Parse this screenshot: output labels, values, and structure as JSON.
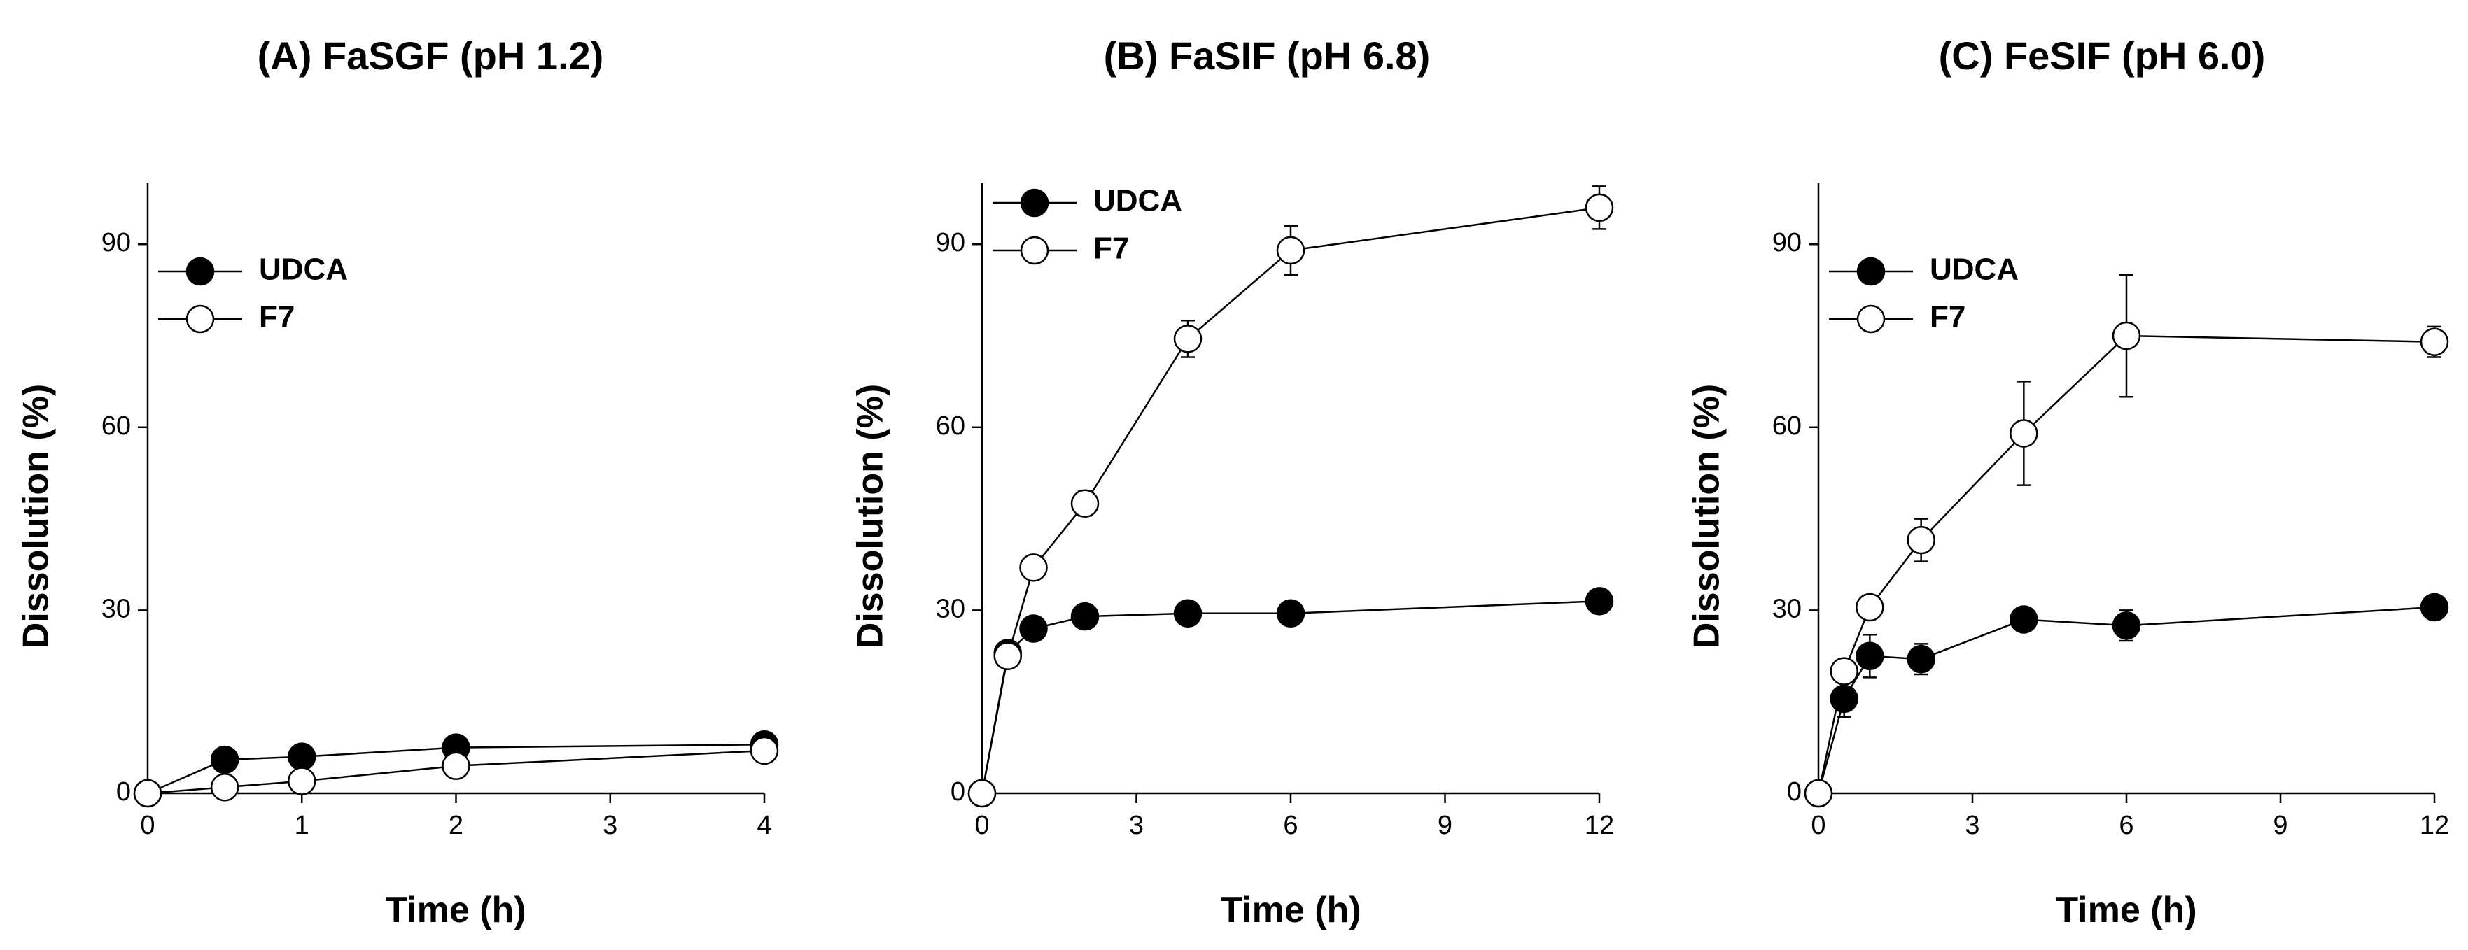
{
  "chart_data": [
    {
      "type": "line",
      "title": "(A) FaSGF (pH 1.2)",
      "xlabel": "Time (h)",
      "ylabel": "Dissolution (%)",
      "xlim": [
        0,
        4
      ],
      "ylim": [
        0,
        100
      ],
      "xticks": [
        0,
        1,
        2,
        3,
        4
      ],
      "yticks": [
        0,
        30,
        60,
        90
      ],
      "legend": "top-left",
      "series": [
        {
          "name": "UDCA",
          "marker": "filled",
          "x": [
            0,
            0.5,
            1,
            2,
            4
          ],
          "y": [
            0,
            5.5,
            6,
            7.5,
            8
          ],
          "err": [
            0,
            0.5,
            0.5,
            0.5,
            0.5
          ]
        },
        {
          "name": "F7",
          "marker": "open",
          "x": [
            0,
            0.5,
            1,
            2,
            4
          ],
          "y": [
            0,
            1,
            2,
            4.5,
            7
          ],
          "err": [
            0,
            0.5,
            0.5,
            0.5,
            0.5
          ]
        }
      ]
    },
    {
      "type": "line",
      "title": "(B) FaSIF (pH 6.8)",
      "xlabel": "Time (h)",
      "ylabel": "Dissolution (%)",
      "xlim": [
        0,
        12
      ],
      "ylim": [
        0,
        100
      ],
      "xticks": [
        0,
        3,
        6,
        9,
        12
      ],
      "yticks": [
        0,
        30,
        60,
        90
      ],
      "legend": "top-left",
      "series": [
        {
          "name": "UDCA",
          "marker": "filled",
          "x": [
            0,
            0.5,
            1,
            2,
            4,
            6,
            12
          ],
          "y": [
            0,
            23,
            27,
            29,
            29.5,
            29.5,
            31.5
          ],
          "err": [
            0,
            0.5,
            0.5,
            0.8,
            0.8,
            0.8,
            0.8
          ]
        },
        {
          "name": "F7",
          "marker": "open",
          "x": [
            0,
            0.5,
            1,
            2,
            4,
            6,
            12
          ],
          "y": [
            0,
            22.5,
            37,
            47.5,
            74.5,
            89,
            96
          ],
          "err": [
            0,
            0.8,
            1,
            2,
            3,
            4,
            3.5
          ]
        }
      ]
    },
    {
      "type": "line",
      "title": "(C) FeSIF (pH 6.0)",
      "xlabel": "Time (h)",
      "ylabel": "Dissolution (%)",
      "xlim": [
        0,
        12
      ],
      "ylim": [
        0,
        100
      ],
      "xticks": [
        0,
        3,
        6,
        9,
        12
      ],
      "yticks": [
        0,
        30,
        60,
        90
      ],
      "legend": "top-left",
      "series": [
        {
          "name": "UDCA",
          "marker": "filled",
          "x": [
            0,
            0.5,
            1,
            2,
            4,
            6,
            12
          ],
          "y": [
            0,
            15.5,
            22.5,
            22,
            28.5,
            27.5,
            30.5
          ],
          "err": [
            0,
            3,
            3.5,
            2.5,
            1,
            2.5,
            1
          ]
        },
        {
          "name": "F7",
          "marker": "open",
          "x": [
            0,
            0.5,
            1,
            2,
            4,
            6,
            12
          ],
          "y": [
            0,
            20,
            30.5,
            41.5,
            59,
            75,
            74
          ],
          "err": [
            0,
            1,
            1.5,
            3.5,
            8.5,
            10,
            2.5
          ]
        }
      ]
    }
  ]
}
